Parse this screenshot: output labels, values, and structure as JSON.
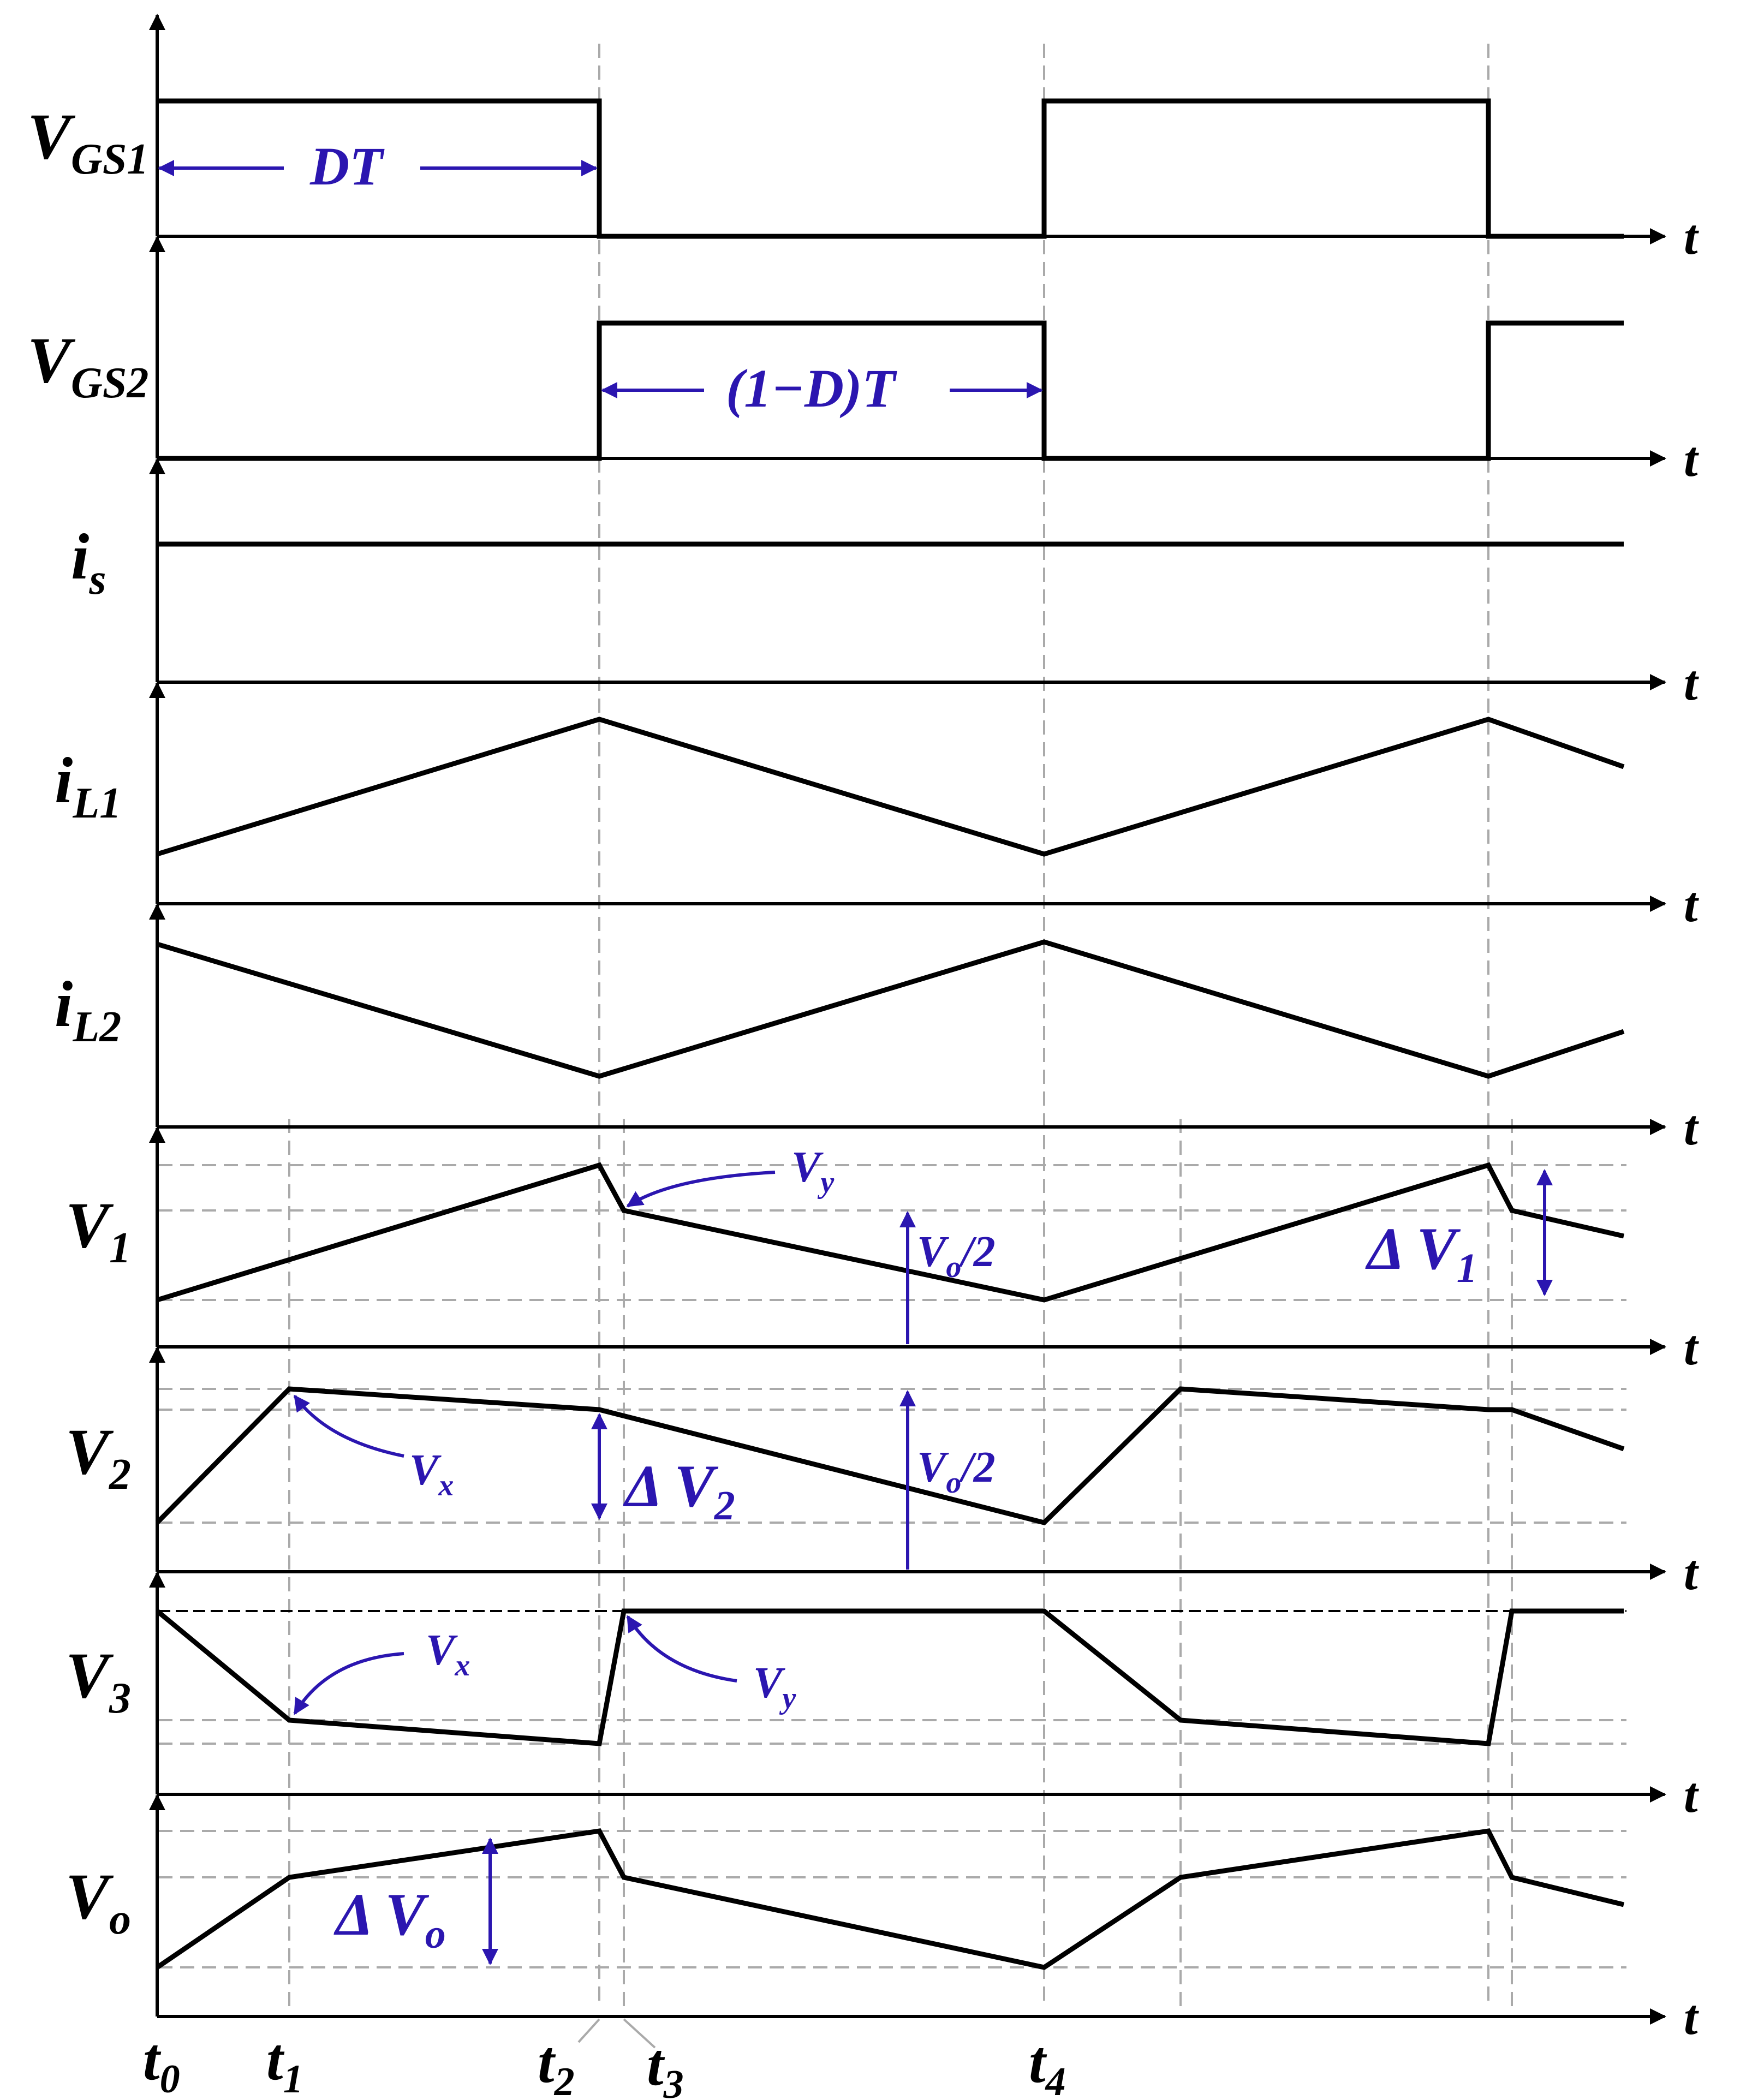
{
  "colors": {
    "waveform": "#000000",
    "annotation": "#2b16b0",
    "guide": "#aaaaaa"
  },
  "time_axis_label": "t",
  "channels": [
    {
      "key": "vgs1",
      "name": "V",
      "sub": "GS1"
    },
    {
      "key": "vgs2",
      "name": "V",
      "sub": "GS2"
    },
    {
      "key": "is",
      "name": "i",
      "sub": "s"
    },
    {
      "key": "il1",
      "name": "i",
      "sub": "L1"
    },
    {
      "key": "il2",
      "name": "i",
      "sub": "L2"
    },
    {
      "key": "v1",
      "name": "V",
      "sub": "1"
    },
    {
      "key": "v2",
      "name": "V",
      "sub": "2"
    },
    {
      "key": "v3",
      "name": "V",
      "sub": "3"
    },
    {
      "key": "vo",
      "name": "V",
      "sub": "o"
    }
  ],
  "time_markers": [
    {
      "name": "t",
      "sub": "0"
    },
    {
      "name": "t",
      "sub": "1"
    },
    {
      "name": "t",
      "sub": "2"
    },
    {
      "name": "t",
      "sub": "3"
    },
    {
      "name": "t",
      "sub": "4"
    }
  ],
  "annotations": {
    "duty_on": "DT",
    "duty_off": "(1−D)T",
    "vy": {
      "name": "V",
      "sub": "y"
    },
    "vx": {
      "name": "V",
      "sub": "x"
    },
    "delta_v1": {
      "name": "Δ V",
      "sub": "1"
    },
    "delta_v2": {
      "name": "Δ V",
      "sub": "2"
    },
    "delta_vo": {
      "name": "Δ V",
      "sub": "o"
    },
    "vo_half": {
      "name": "V",
      "sub": "o",
      "tail": "/2"
    }
  }
}
